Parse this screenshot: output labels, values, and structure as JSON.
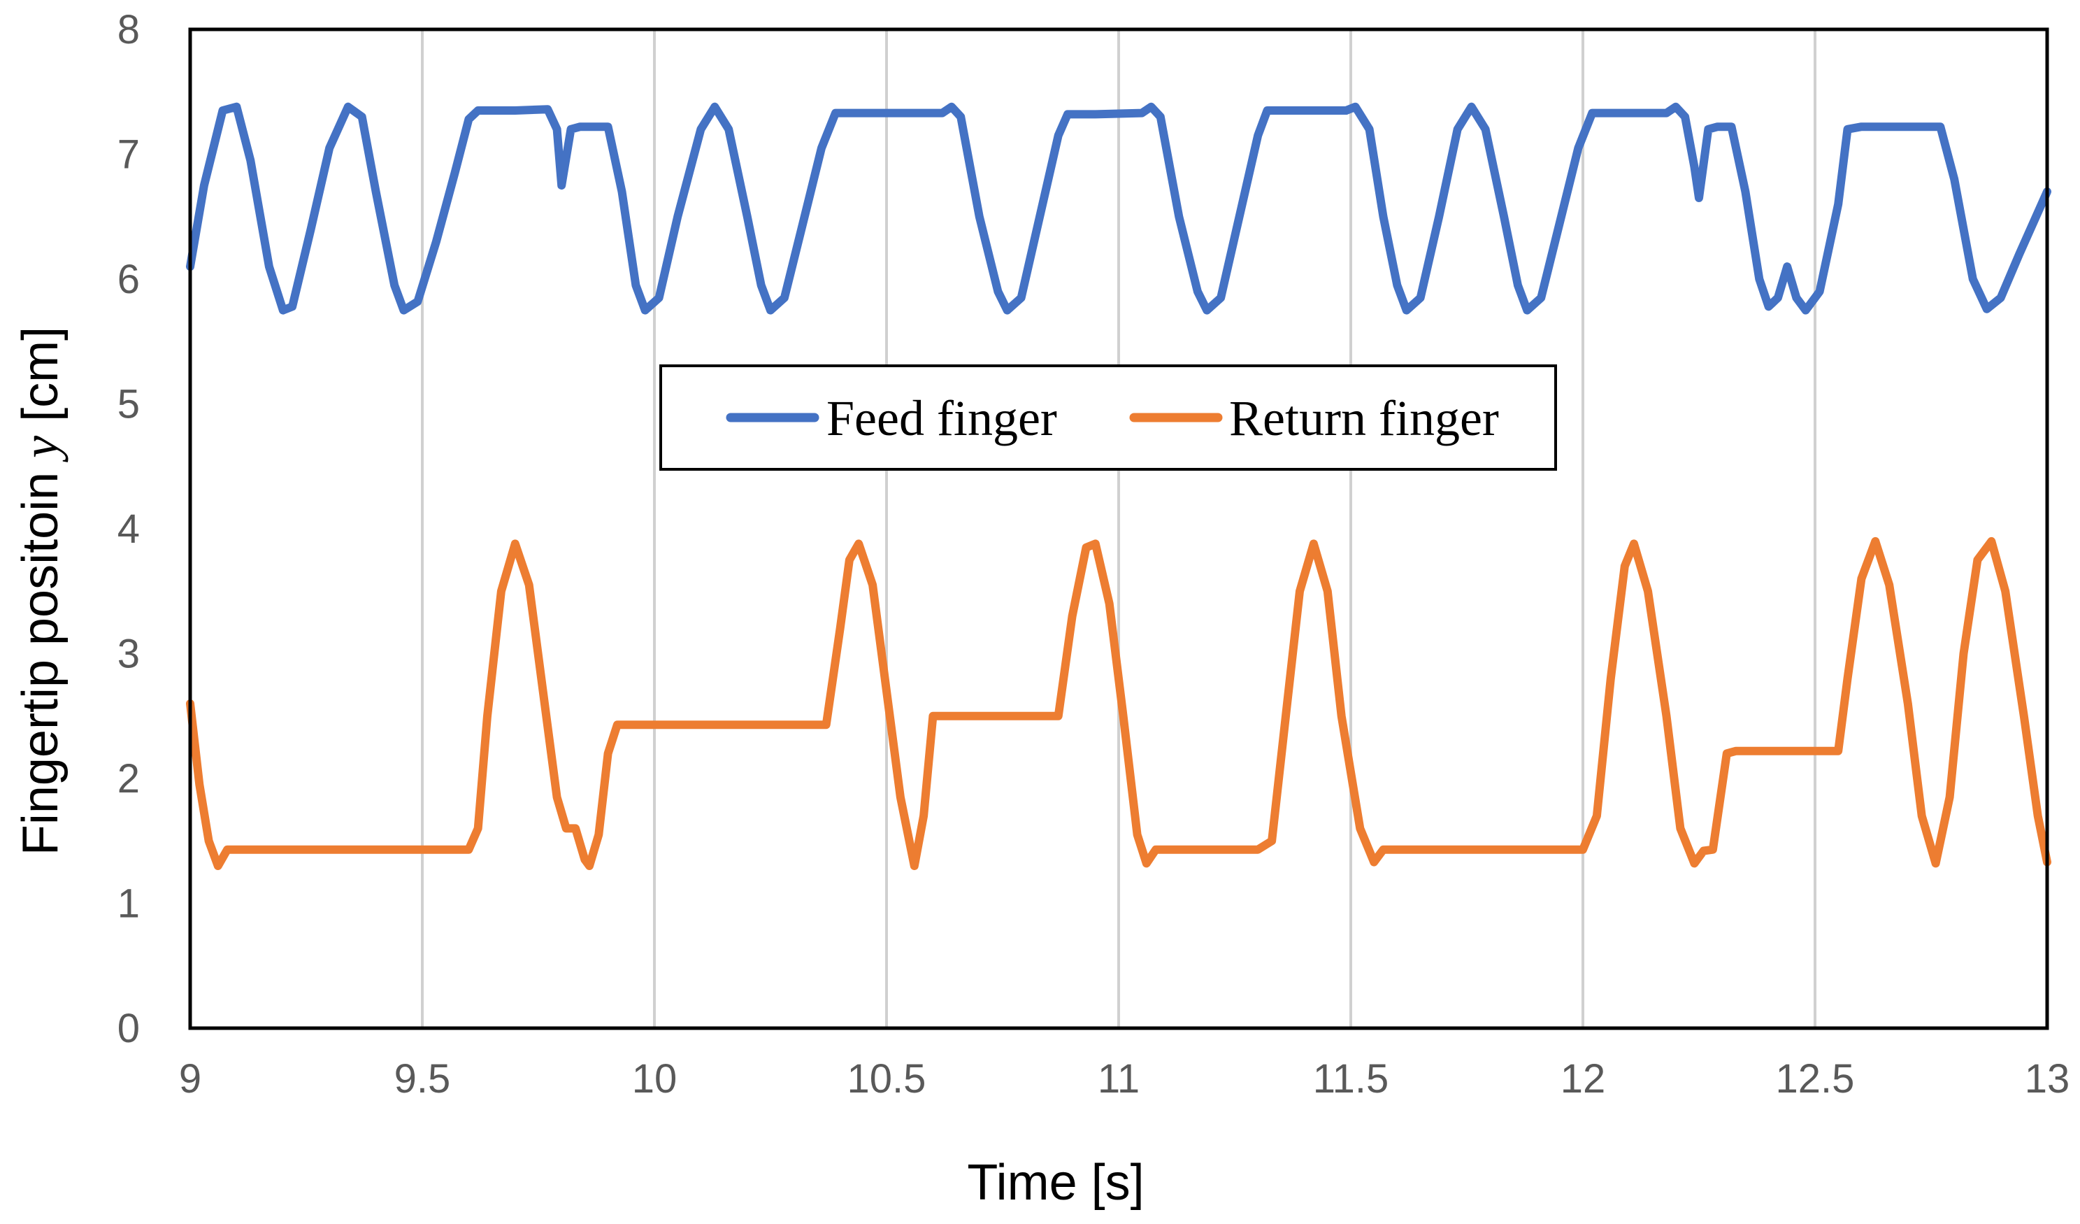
{
  "chart_data": {
    "type": "line",
    "title": "",
    "xlabel": "Time [s]",
    "ylabel_prefix": "Fingertip positoin ",
    "ylabel_var": "y",
    "ylabel_suffix": " [cm]",
    "xlim": [
      9,
      13
    ],
    "ylim": [
      0,
      8
    ],
    "x_ticks": [
      9,
      9.5,
      10,
      10.5,
      11,
      11.5,
      12,
      12.5,
      13
    ],
    "x_tick_labels": [
      "9",
      "9.5",
      "10",
      "10.5",
      "11",
      "11.5",
      "12",
      "12.5",
      "13"
    ],
    "y_ticks": [
      0,
      1,
      2,
      3,
      4,
      5,
      6,
      7,
      8
    ],
    "y_tick_labels": [
      "0",
      "1",
      "2",
      "3",
      "4",
      "5",
      "6",
      "7",
      "8"
    ],
    "grid": "vertical",
    "legend_position": "center",
    "series": [
      {
        "name": "Feed finger",
        "color": "#4472C4",
        "points": [
          [
            9.0,
            6.1
          ],
          [
            9.03,
            6.75
          ],
          [
            9.07,
            7.35
          ],
          [
            9.1,
            7.38
          ],
          [
            9.13,
            6.95
          ],
          [
            9.17,
            6.1
          ],
          [
            9.2,
            5.75
          ],
          [
            9.22,
            5.78
          ],
          [
            9.26,
            6.4
          ],
          [
            9.3,
            7.05
          ],
          [
            9.34,
            7.38
          ],
          [
            9.37,
            7.3
          ],
          [
            9.4,
            6.7
          ],
          [
            9.44,
            5.95
          ],
          [
            9.46,
            5.75
          ],
          [
            9.49,
            5.82
          ],
          [
            9.53,
            6.3
          ],
          [
            9.57,
            6.85
          ],
          [
            9.6,
            7.28
          ],
          [
            9.62,
            7.35
          ],
          [
            9.7,
            7.35
          ],
          [
            9.77,
            7.36
          ],
          [
            9.79,
            7.2
          ],
          [
            9.8,
            6.75
          ],
          [
            9.82,
            7.2
          ],
          [
            9.84,
            7.22
          ],
          [
            9.9,
            7.22
          ],
          [
            9.93,
            6.7
          ],
          [
            9.96,
            5.95
          ],
          [
            9.98,
            5.75
          ],
          [
            10.01,
            5.85
          ],
          [
            10.05,
            6.5
          ],
          [
            10.1,
            7.2
          ],
          [
            10.13,
            7.38
          ],
          [
            10.16,
            7.2
          ],
          [
            10.2,
            6.5
          ],
          [
            10.23,
            5.95
          ],
          [
            10.25,
            5.75
          ],
          [
            10.28,
            5.85
          ],
          [
            10.32,
            6.45
          ],
          [
            10.36,
            7.05
          ],
          [
            10.39,
            7.33
          ],
          [
            10.45,
            7.33
          ],
          [
            10.55,
            7.33
          ],
          [
            10.62,
            7.33
          ],
          [
            10.64,
            7.38
          ],
          [
            10.66,
            7.3
          ],
          [
            10.7,
            6.5
          ],
          [
            10.74,
            5.9
          ],
          [
            10.76,
            5.75
          ],
          [
            10.79,
            5.85
          ],
          [
            10.83,
            6.5
          ],
          [
            10.87,
            7.15
          ],
          [
            10.89,
            7.32
          ],
          [
            10.95,
            7.32
          ],
          [
            11.05,
            7.33
          ],
          [
            11.07,
            7.38
          ],
          [
            11.09,
            7.3
          ],
          [
            11.13,
            6.5
          ],
          [
            11.17,
            5.9
          ],
          [
            11.19,
            5.75
          ],
          [
            11.22,
            5.85
          ],
          [
            11.26,
            6.5
          ],
          [
            11.3,
            7.15
          ],
          [
            11.32,
            7.35
          ],
          [
            11.4,
            7.35
          ],
          [
            11.49,
            7.35
          ],
          [
            11.51,
            7.38
          ],
          [
            11.54,
            7.2
          ],
          [
            11.57,
            6.5
          ],
          [
            11.6,
            5.95
          ],
          [
            11.62,
            5.75
          ],
          [
            11.65,
            5.85
          ],
          [
            11.69,
            6.5
          ],
          [
            11.73,
            7.2
          ],
          [
            11.76,
            7.38
          ],
          [
            11.79,
            7.2
          ],
          [
            11.83,
            6.5
          ],
          [
            11.86,
            5.95
          ],
          [
            11.88,
            5.75
          ],
          [
            11.91,
            5.85
          ],
          [
            11.95,
            6.45
          ],
          [
            11.99,
            7.05
          ],
          [
            12.02,
            7.33
          ],
          [
            12.1,
            7.33
          ],
          [
            12.18,
            7.33
          ],
          [
            12.2,
            7.38
          ],
          [
            12.22,
            7.3
          ],
          [
            12.24,
            6.9
          ],
          [
            12.25,
            6.65
          ],
          [
            12.27,
            7.2
          ],
          [
            12.29,
            7.22
          ],
          [
            12.32,
            7.22
          ],
          [
            12.35,
            6.7
          ],
          [
            12.38,
            6.0
          ],
          [
            12.4,
            5.78
          ],
          [
            12.42,
            5.85
          ],
          [
            12.44,
            6.1
          ],
          [
            12.46,
            5.85
          ],
          [
            12.48,
            5.75
          ],
          [
            12.51,
            5.9
          ],
          [
            12.55,
            6.6
          ],
          [
            12.57,
            7.2
          ],
          [
            12.6,
            7.22
          ],
          [
            12.7,
            7.22
          ],
          [
            12.77,
            7.22
          ],
          [
            12.8,
            6.8
          ],
          [
            12.84,
            6.0
          ],
          [
            12.87,
            5.76
          ],
          [
            12.9,
            5.85
          ],
          [
            12.94,
            6.2
          ],
          [
            12.97,
            6.45
          ],
          [
            13.0,
            6.7
          ]
        ]
      },
      {
        "name": "Return finger",
        "color": "#ED7D31",
        "points": [
          [
            9.0,
            2.6
          ],
          [
            9.02,
            1.95
          ],
          [
            9.04,
            1.5
          ],
          [
            9.06,
            1.3
          ],
          [
            9.08,
            1.43
          ],
          [
            9.2,
            1.43
          ],
          [
            9.4,
            1.43
          ],
          [
            9.6,
            1.43
          ],
          [
            9.62,
            1.6
          ],
          [
            9.64,
            2.5
          ],
          [
            9.67,
            3.5
          ],
          [
            9.7,
            3.88
          ],
          [
            9.73,
            3.55
          ],
          [
            9.76,
            2.7
          ],
          [
            9.79,
            1.85
          ],
          [
            9.81,
            1.6
          ],
          [
            9.83,
            1.6
          ],
          [
            9.85,
            1.35
          ],
          [
            9.86,
            1.3
          ],
          [
            9.88,
            1.55
          ],
          [
            9.9,
            2.2
          ],
          [
            9.92,
            2.43
          ],
          [
            10.1,
            2.43
          ],
          [
            10.37,
            2.43
          ],
          [
            10.4,
            3.2
          ],
          [
            10.42,
            3.75
          ],
          [
            10.44,
            3.88
          ],
          [
            10.47,
            3.55
          ],
          [
            10.5,
            2.7
          ],
          [
            10.53,
            1.85
          ],
          [
            10.56,
            1.3
          ],
          [
            10.58,
            1.7
          ],
          [
            10.6,
            2.5
          ],
          [
            10.62,
            2.5
          ],
          [
            10.75,
            2.5
          ],
          [
            10.87,
            2.5
          ],
          [
            10.9,
            3.3
          ],
          [
            10.93,
            3.85
          ],
          [
            10.95,
            3.88
          ],
          [
            10.98,
            3.4
          ],
          [
            11.01,
            2.5
          ],
          [
            11.04,
            1.55
          ],
          [
            11.06,
            1.32
          ],
          [
            11.08,
            1.43
          ],
          [
            11.2,
            1.43
          ],
          [
            11.3,
            1.43
          ],
          [
            11.33,
            1.5
          ],
          [
            11.36,
            2.5
          ],
          [
            11.39,
            3.5
          ],
          [
            11.42,
            3.88
          ],
          [
            11.45,
            3.5
          ],
          [
            11.48,
            2.5
          ],
          [
            11.52,
            1.6
          ],
          [
            11.55,
            1.33
          ],
          [
            11.57,
            1.43
          ],
          [
            11.8,
            1.43
          ],
          [
            12.0,
            1.43
          ],
          [
            12.03,
            1.7
          ],
          [
            12.06,
            2.8
          ],
          [
            12.09,
            3.7
          ],
          [
            12.11,
            3.88
          ],
          [
            12.14,
            3.5
          ],
          [
            12.18,
            2.5
          ],
          [
            12.21,
            1.6
          ],
          [
            12.24,
            1.32
          ],
          [
            12.26,
            1.42
          ],
          [
            12.28,
            1.43
          ],
          [
            12.31,
            2.2
          ],
          [
            12.33,
            2.22
          ],
          [
            12.45,
            2.22
          ],
          [
            12.55,
            2.22
          ],
          [
            12.57,
            2.8
          ],
          [
            12.6,
            3.6
          ],
          [
            12.63,
            3.9
          ],
          [
            12.66,
            3.55
          ],
          [
            12.7,
            2.6
          ],
          [
            12.73,
            1.7
          ],
          [
            12.76,
            1.32
          ],
          [
            12.79,
            1.85
          ],
          [
            12.82,
            3.0
          ],
          [
            12.85,
            3.75
          ],
          [
            12.88,
            3.9
          ],
          [
            12.91,
            3.5
          ],
          [
            12.95,
            2.5
          ],
          [
            12.98,
            1.7
          ],
          [
            13.0,
            1.33
          ]
        ]
      }
    ]
  }
}
